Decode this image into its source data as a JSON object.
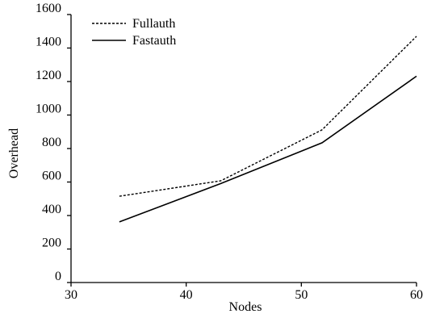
{
  "chart_data": {
    "type": "line",
    "title": "",
    "xlabel": "Nodes",
    "ylabel": "Overhead",
    "xlim": [
      30,
      60
    ],
    "ylim": [
      0,
      1600
    ],
    "xticks": [
      "30",
      "40",
      "50",
      "60"
    ],
    "yticks": [
      "0",
      "200",
      "400",
      "600",
      "800",
      "1000",
      "1200",
      "1400",
      "1600"
    ],
    "grid": false,
    "legend_position": "top-left",
    "series": [
      {
        "name": "Fullauth",
        "style": "dashed",
        "color": "#000000",
        "points": [
          {
            "x": 34.2,
            "y": 515
          },
          {
            "x": 43,
            "y": 607
          },
          {
            "x": 51.8,
            "y": 912
          },
          {
            "x": 60,
            "y": 1470
          }
        ]
      },
      {
        "name": "Fastauth",
        "style": "solid",
        "color": "#000000",
        "points": [
          {
            "x": 34.2,
            "y": 362
          },
          {
            "x": 43,
            "y": 591
          },
          {
            "x": 51.8,
            "y": 834
          },
          {
            "x": 60,
            "y": 1232
          }
        ]
      }
    ]
  }
}
